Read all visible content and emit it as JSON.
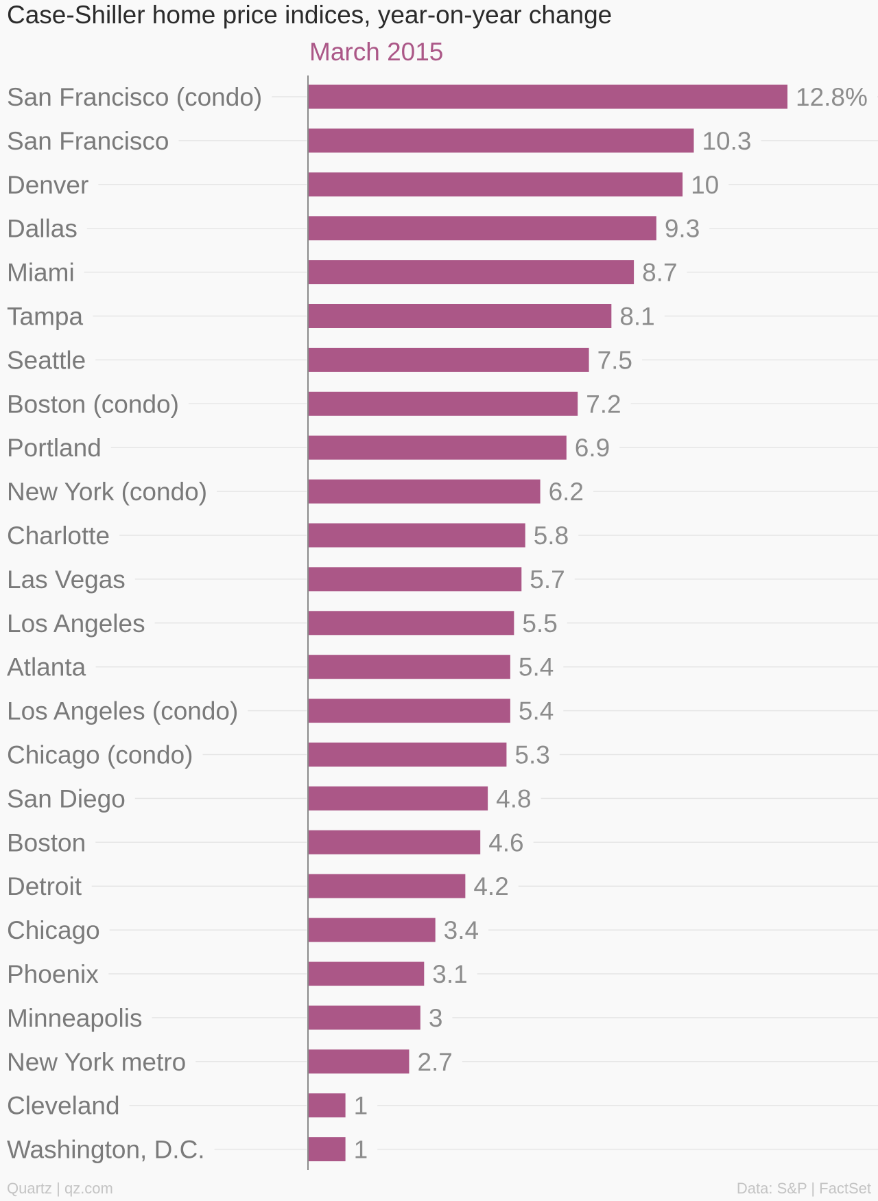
{
  "title": "Case-Shiller home price indices, year-on-year change",
  "footer": {
    "source_left": "Quartz | qz.com",
    "source_right": "Data: S&P | FactSet"
  },
  "colors": {
    "bar": "#ab5787",
    "series_label": "#ab5787",
    "category_text": "#7a7a7a",
    "value_text": "#8c8c8c",
    "gridline": "#e6e6e6",
    "axis": "#8a8a8a"
  },
  "chart_data": {
    "type": "bar",
    "orientation": "horizontal",
    "title": "Case-Shiller home price indices, year-on-year change",
    "xlabel": "",
    "ylabel": "",
    "xlim": [
      0,
      12.8
    ],
    "grid": true,
    "value_suffix_first": "%",
    "series": [
      {
        "name": "March 2015",
        "values": [
          12.8,
          10.3,
          10,
          9.3,
          8.7,
          8.1,
          7.5,
          7.2,
          6.9,
          6.2,
          5.8,
          5.7,
          5.5,
          5.4,
          5.4,
          5.3,
          4.8,
          4.6,
          4.2,
          3.4,
          3.1,
          3,
          2.7,
          1,
          1
        ]
      }
    ],
    "categories": [
      "San Francisco (condo)",
      "San Francisco",
      "Denver",
      "Dallas",
      "Miami",
      "Tampa",
      "Seattle",
      "Boston (condo)",
      "Portland",
      "New York (condo)",
      "Charlotte",
      "Las Vegas",
      "Los Angeles",
      "Atlanta",
      "Los Angeles (condo)",
      "Chicago (condo)",
      "San Diego",
      "Boston",
      "Detroit",
      "Chicago",
      "Phoenix",
      "Minneapolis",
      "New York metro",
      "Cleveland",
      "Washington, D.C."
    ],
    "data_labels": [
      "12.8%",
      "10.3",
      "10",
      "9.3",
      "8.7",
      "8.1",
      "7.5",
      "7.2",
      "6.9",
      "6.2",
      "5.8",
      "5.7",
      "5.5",
      "5.4",
      "5.4",
      "5.3",
      "4.8",
      "4.6",
      "4.2",
      "3.4",
      "3.1",
      "3",
      "2.7",
      "1",
      "1"
    ]
  }
}
